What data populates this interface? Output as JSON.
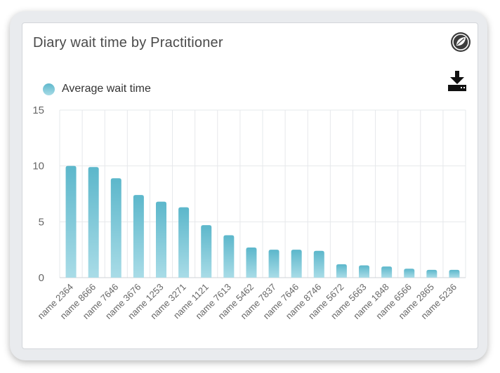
{
  "card": {
    "title": "Diary wait time by Practitioner",
    "brand_icon": "leaf-logo-icon",
    "download_icon": "download-icon"
  },
  "colors": {
    "bar_top": "#5cb7cb",
    "bar_bottom": "#a9dce7",
    "grid": "#e6e8eb",
    "axis_text": "#666666"
  },
  "chart_data": {
    "type": "bar",
    "title": "",
    "xlabel": "",
    "ylabel": "",
    "legend_position": "top-left",
    "grid": true,
    "ylim": [
      0,
      15
    ],
    "yticks": [
      0,
      5,
      10,
      15
    ],
    "categories": [
      "name 2364",
      "name 8666",
      "name 7646",
      "name 3676",
      "name 1253",
      "name 3271",
      "name 1121",
      "name 7613",
      "name 5462",
      "name 7837",
      "name 7646",
      "name 8746",
      "name 5672",
      "name 5663",
      "name 1848",
      "name 6566",
      "name 2865",
      "name 5236"
    ],
    "series": [
      {
        "name": "Average wait time",
        "values": [
          10.0,
          9.9,
          8.9,
          7.4,
          6.8,
          6.3,
          4.7,
          3.8,
          2.7,
          2.5,
          2.5,
          2.4,
          1.2,
          1.1,
          1.0,
          0.8,
          0.7,
          0.7
        ]
      }
    ]
  }
}
